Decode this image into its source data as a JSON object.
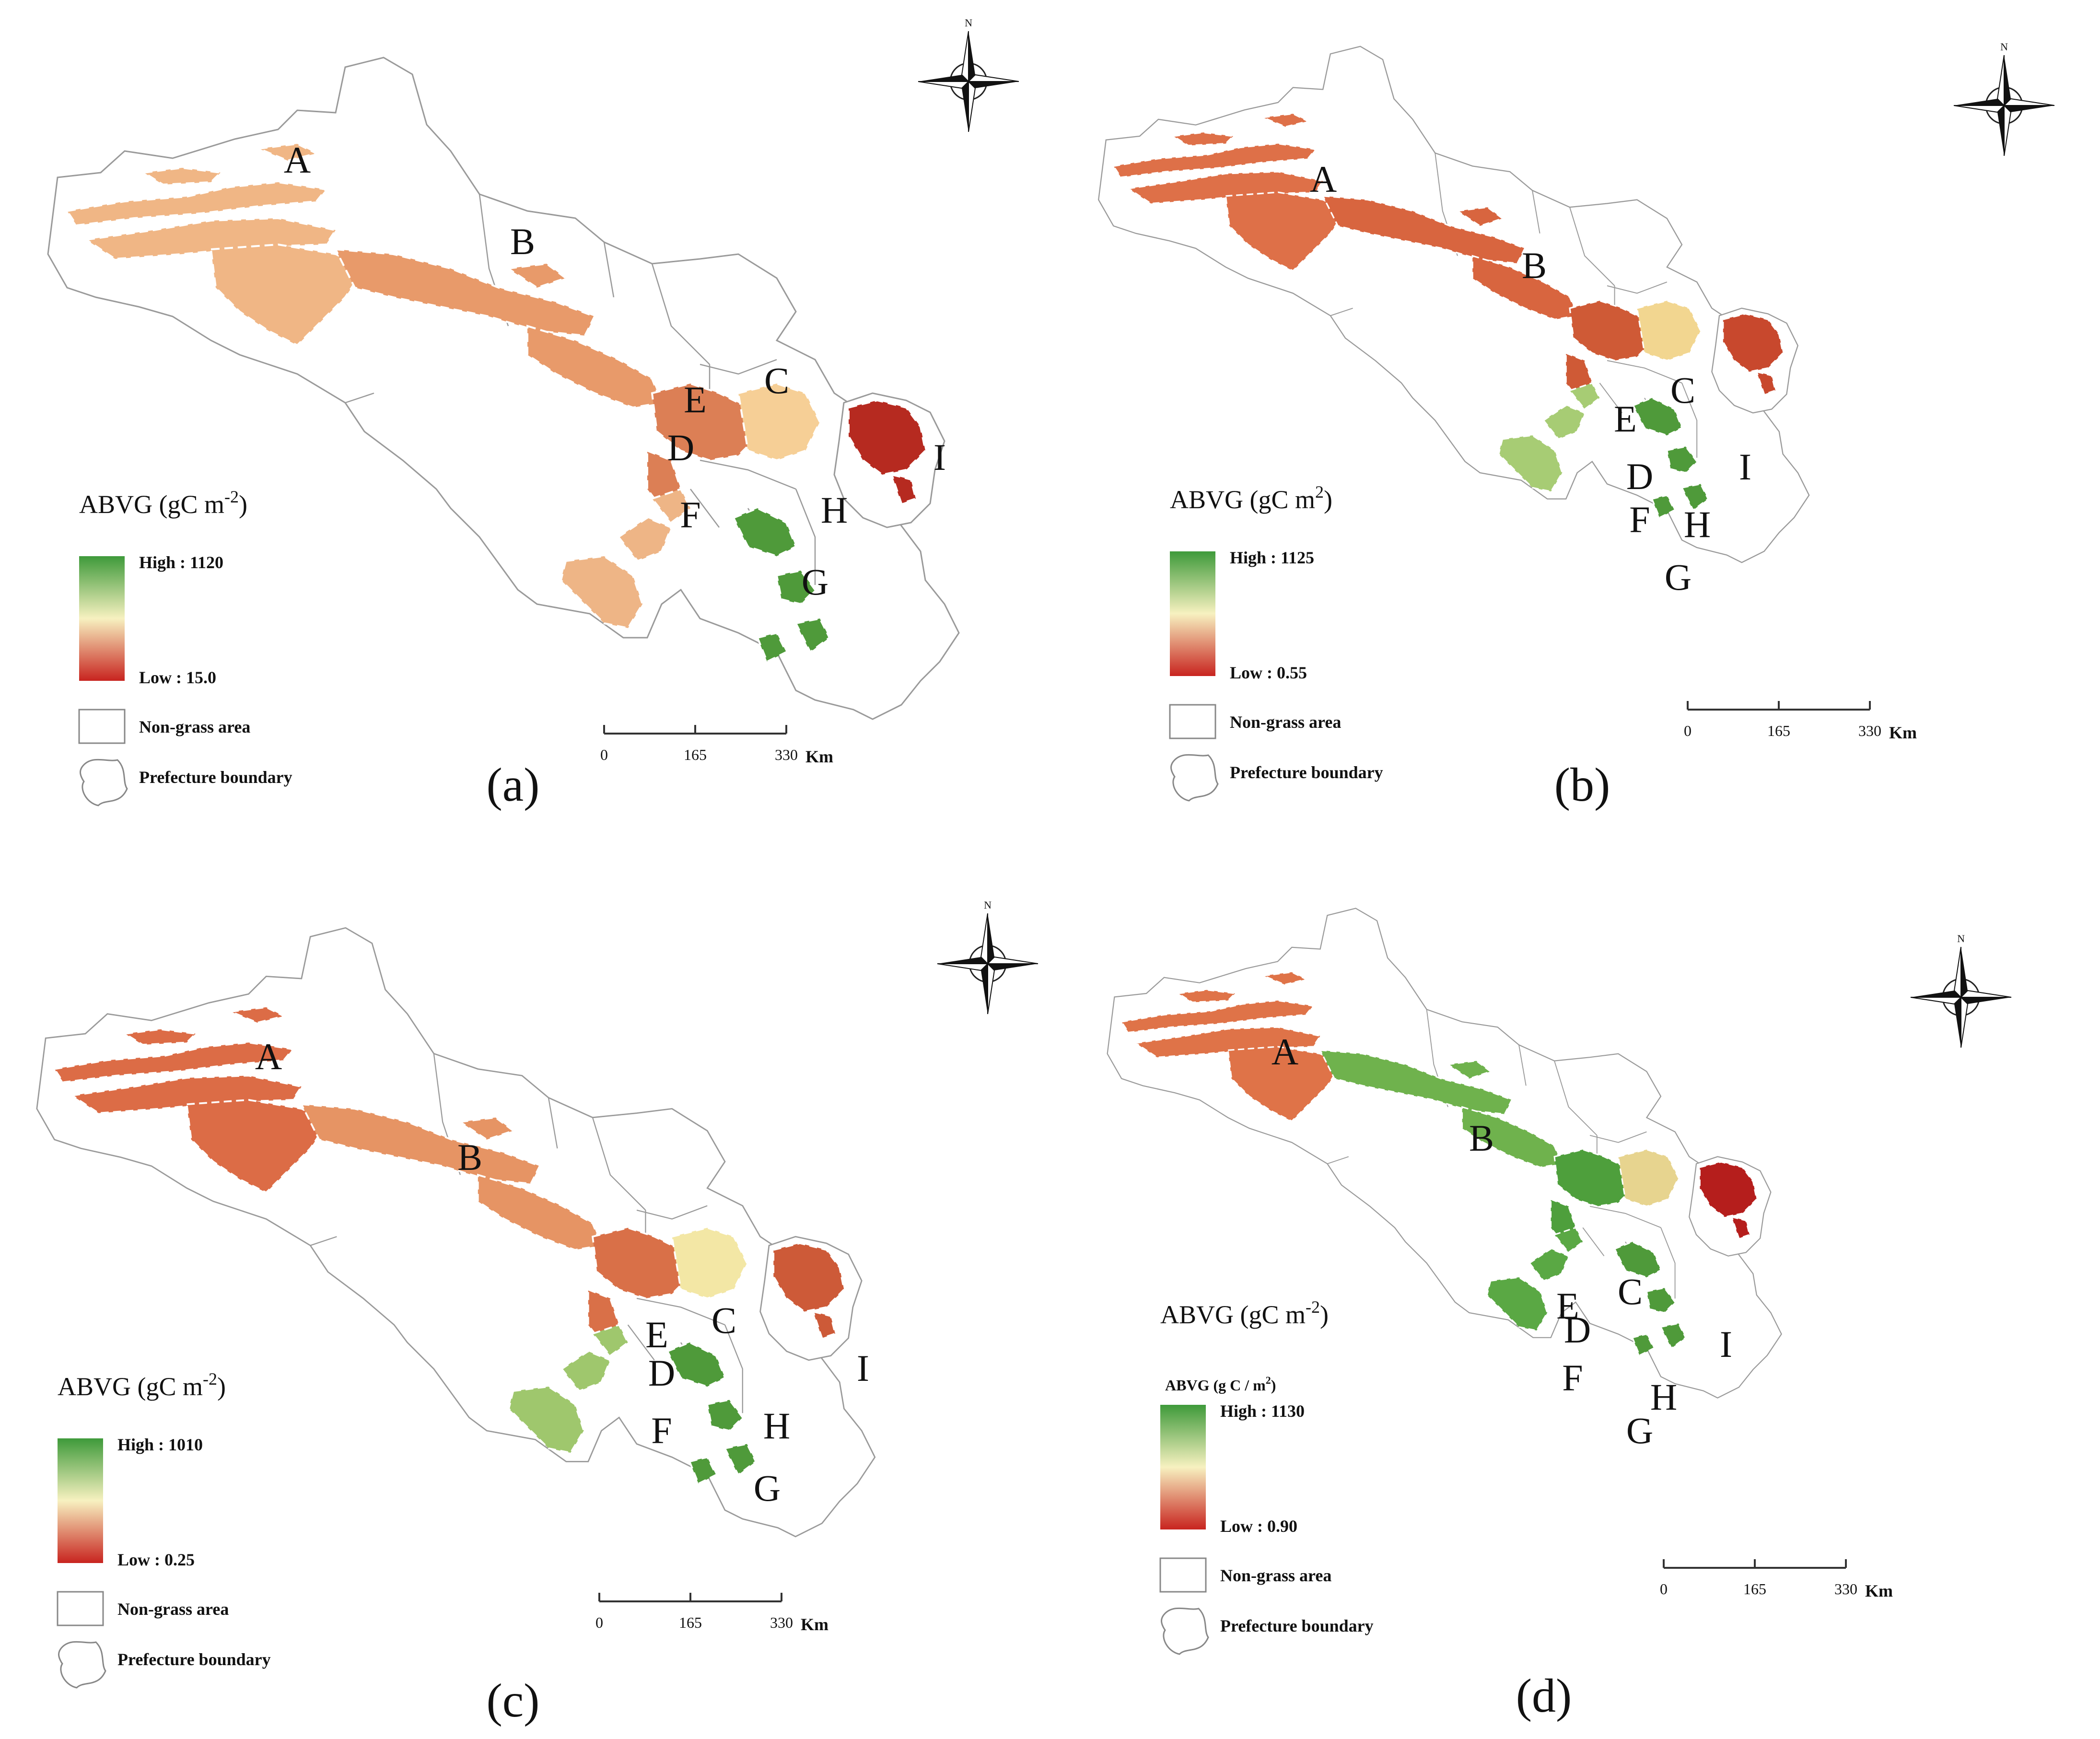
{
  "panels": [
    {
      "id": "a",
      "caption": "(a)",
      "legend_title": "ABVG (gC m",
      "legend_title_sup": "-2",
      "legend_title_tail": ")",
      "legend_subtitle": "",
      "high_label": "High : 1120",
      "low_label": "Low : 15.0",
      "non_grass_label": "Non-grass area",
      "boundary_label": "Prefecture boundary",
      "scale_ticks": [
        "0",
        "165",
        "330"
      ],
      "scale_unit": "Km",
      "region_labels": [
        "A",
        "B",
        "C",
        "D",
        "E",
        "F",
        "G",
        "H",
        "I"
      ],
      "palette": {
        "west": "#f0b685",
        "mid": "#e89a6a",
        "core": "#dc7f55",
        "east": "#f6cf96",
        "south_w": "#eeb586",
        "south": "#4f9a3a",
        "i": "#b62a20"
      }
    },
    {
      "id": "b",
      "caption": "(b)",
      "legend_title": "ABVG (gC m",
      "legend_title_sup": "2",
      "legend_title_tail": ")",
      "legend_subtitle": "",
      "high_label": "High : 1125",
      "low_label": "Low : 0.55",
      "non_grass_label": "Non-grass area",
      "boundary_label": "Prefecture boundary",
      "scale_ticks": [
        "0",
        "165",
        "330"
      ],
      "scale_unit": "Km",
      "region_labels": [
        "A",
        "B",
        "C",
        "D",
        "E",
        "F",
        "G",
        "H",
        "I"
      ],
      "palette": {
        "west": "#de7048",
        "mid": "#d8653f",
        "core": "#cf5a36",
        "east": "#f2d690",
        "south_w": "#a7cc74",
        "south": "#4f9a3a",
        "i": "#c8482d"
      }
    },
    {
      "id": "c",
      "caption": "(c)",
      "legend_title": "ABVG (gC m",
      "legend_title_sup": "-2",
      "legend_title_tail": ")",
      "legend_subtitle": "",
      "high_label": "High : 1010",
      "low_label": "Low : 0.25",
      "non_grass_label": "Non-grass area",
      "boundary_label": "Prefecture boundary",
      "scale_ticks": [
        "0",
        "165",
        "330"
      ],
      "scale_unit": "Km",
      "region_labels": [
        "A",
        "B",
        "C",
        "D",
        "E",
        "F",
        "G",
        "H",
        "I"
      ],
      "palette": {
        "west": "#dc6c46",
        "mid": "#e69464",
        "core": "#d97048",
        "east": "#f3e7a5",
        "south_w": "#9fc76d",
        "south": "#4f9a3a",
        "i": "#cd5a38"
      }
    },
    {
      "id": "d",
      "caption": "(d)",
      "legend_title": "ABVG (gC m",
      "legend_title_sup": "-2",
      "legend_title_tail": ")",
      "legend_subtitle": "ABVG (g C / m",
      "legend_subtitle_sup": "2",
      "high_label": "High : 1130",
      "low_label": "Low : 0.90",
      "non_grass_label": "Non-grass area",
      "boundary_label": "Prefecture boundary",
      "scale_ticks": [
        "0",
        "165",
        "330"
      ],
      "scale_unit": "Km",
      "region_labels": [
        "A",
        "B",
        "C",
        "D",
        "E",
        "F",
        "G",
        "H",
        "I"
      ],
      "palette": {
        "west": "#df7348",
        "mid": "#6fb24d",
        "core": "#4e9f3c",
        "east": "#e7d48f",
        "south_w": "#5aa844",
        "south": "#4f9a3a",
        "i": "#b51e1c"
      }
    }
  ],
  "colors": {
    "ramp_high": "#3e9a3a",
    "ramp_mid": "#f7f1c0",
    "ramp_low": "#c8241f",
    "boundary": "#9a9a9a",
    "text": "#111111"
  },
  "north_arrow_label": "N"
}
